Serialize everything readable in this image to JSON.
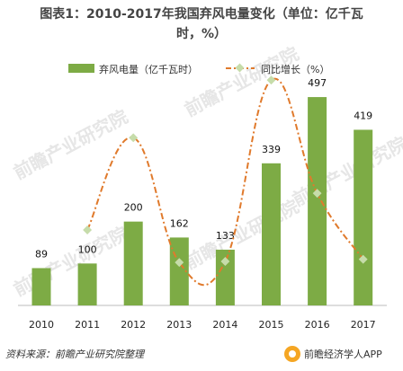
{
  "title_line1": "图表1：2010-2017年我国弃风电量变化（单位：亿千瓦",
  "title_line2": "时，%）",
  "source": "资料来源：前瞻产业研究院整理",
  "brand": "前瞻经济学人APP",
  "watermark": "前瞻产业研究院",
  "colors": {
    "bar": "#7dab45",
    "line": "#e07a2c",
    "marker": "#c6dcaa"
  },
  "chart_data": {
    "type": "bar",
    "categories": [
      "2010",
      "2011",
      "2012",
      "2013",
      "2014",
      "2015",
      "2016",
      "2017"
    ],
    "series": [
      {
        "name": "弃风电量（亿千瓦时）",
        "type": "bar",
        "values": [
          89,
          100,
          200,
          162,
          133,
          339,
          497,
          419
        ]
      },
      {
        "name": "同比增长（%）",
        "type": "line",
        "values": [
          null,
          12,
          100,
          -19,
          -18,
          155,
          47,
          -16
        ]
      }
    ],
    "ylim": [
      0,
      600
    ],
    "y2lim": [
      -60,
      180
    ],
    "grid": false,
    "legend": "top"
  }
}
